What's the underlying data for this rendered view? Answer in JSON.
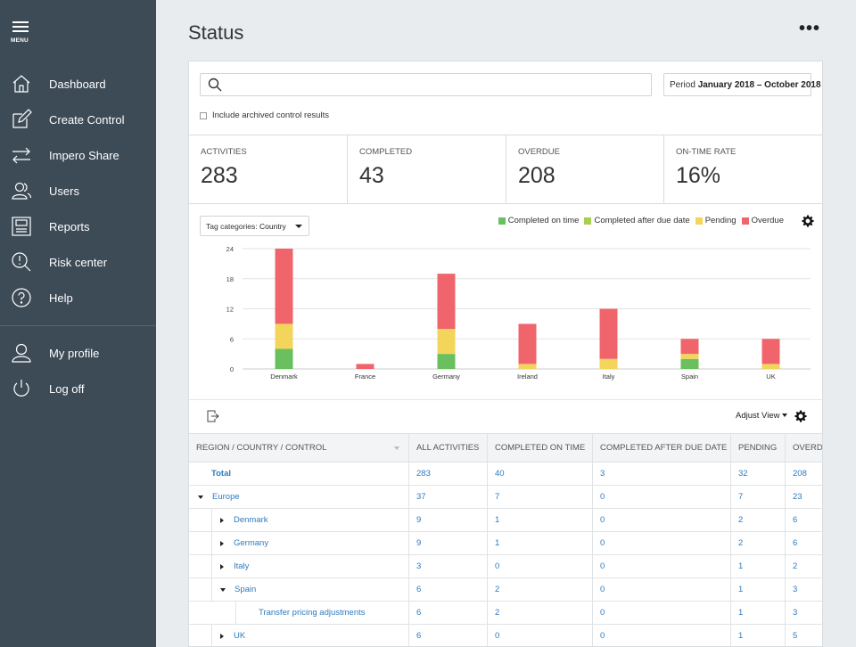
{
  "sidebar": {
    "menu_label": "MENU",
    "items": [
      {
        "label": "Dashboard",
        "icon": "home-icon"
      },
      {
        "label": "Create Control",
        "icon": "edit-icon"
      },
      {
        "label": "Impero Share",
        "icon": "share-arrows-icon"
      },
      {
        "label": "Users",
        "icon": "users-icon"
      },
      {
        "label": "Reports",
        "icon": "reports-icon"
      },
      {
        "label": "Risk center",
        "icon": "risk-magnifier-icon"
      },
      {
        "label": "Help",
        "icon": "help-icon"
      }
    ],
    "bottom_items": [
      {
        "label": "My profile",
        "icon": "profile-icon"
      },
      {
        "label": "Log off",
        "icon": "power-icon"
      }
    ]
  },
  "header": {
    "title": "Status",
    "more": "•••"
  },
  "search": {
    "placeholder": "",
    "value": ""
  },
  "period": {
    "label": "Period",
    "value": "January 2018 – October 2018"
  },
  "archive_label": "Include archived control results",
  "kpis": [
    {
      "label": "ACTIVITIES",
      "value": "283"
    },
    {
      "label": "COMPLETED",
      "value": "43"
    },
    {
      "label": "OVERDUE",
      "value": "208"
    },
    {
      "label": "ON-TIME RATE",
      "value": "16%"
    }
  ],
  "tag_select": {
    "label": "Tag categories:",
    "value": "Country"
  },
  "chart_data": {
    "type": "bar",
    "stacked": true,
    "categories": [
      "Denmark",
      "France",
      "Germany",
      "Ireland",
      "Italy",
      "Spain",
      "UK"
    ],
    "series": [
      {
        "name": "Completed on time",
        "color": "#6abf5e",
        "values": [
          4,
          0,
          3,
          0,
          0,
          2,
          0
        ]
      },
      {
        "name": "Completed after due date",
        "color": "#a8cf4f",
        "values": [
          0,
          0,
          0,
          0,
          0,
          0,
          0
        ]
      },
      {
        "name": "Pending",
        "color": "#f2d55a",
        "values": [
          5,
          0,
          5,
          1,
          2,
          1,
          1
        ]
      },
      {
        "name": "Overdue",
        "color": "#f0656b",
        "values": [
          15,
          1,
          11,
          8,
          10,
          3,
          5
        ]
      }
    ],
    "yticks": [
      "0",
      "6",
      "12",
      "18",
      "24"
    ],
    "ylim": [
      0,
      24
    ],
    "grid": true,
    "legend_position": "top-right"
  },
  "table_toolbar": {
    "adjust_view": "Adjust View"
  },
  "table": {
    "headers": [
      "REGION / COUNTRY / CONTROL",
      "ALL ACTIVITIES",
      "COMPLETED ON TIME",
      "COMPLETED AFTER DUE DATE",
      "PENDING",
      "OVERD"
    ],
    "rows": [
      {
        "name": "Total",
        "level": 0,
        "toggle": "none",
        "bold": true,
        "cells": [
          "283",
          "40",
          "3",
          "32",
          "208"
        ]
      },
      {
        "name": "Europe",
        "level": 0,
        "toggle": "down",
        "bold": false,
        "cells": [
          "37",
          "7",
          "0",
          "7",
          "23"
        ]
      },
      {
        "name": "Denmark",
        "level": 1,
        "toggle": "right",
        "bold": false,
        "cells": [
          "9",
          "1",
          "0",
          "2",
          "6"
        ]
      },
      {
        "name": "Germany",
        "level": 1,
        "toggle": "right",
        "bold": false,
        "cells": [
          "9",
          "1",
          "0",
          "2",
          "6"
        ]
      },
      {
        "name": "Italy",
        "level": 1,
        "toggle": "right",
        "bold": false,
        "cells": [
          "3",
          "0",
          "0",
          "1",
          "2"
        ]
      },
      {
        "name": "Spain",
        "level": 1,
        "toggle": "down",
        "bold": false,
        "cells": [
          "6",
          "2",
          "0",
          "1",
          "3"
        ]
      },
      {
        "name": "Transfer pricing adjustments",
        "level": 2,
        "toggle": "none",
        "bold": false,
        "cells": [
          "6",
          "2",
          "0",
          "1",
          "3"
        ]
      },
      {
        "name": "UK",
        "level": 1,
        "toggle": "right",
        "bold": false,
        "cells": [
          "6",
          "0",
          "0",
          "1",
          "5"
        ]
      }
    ]
  }
}
